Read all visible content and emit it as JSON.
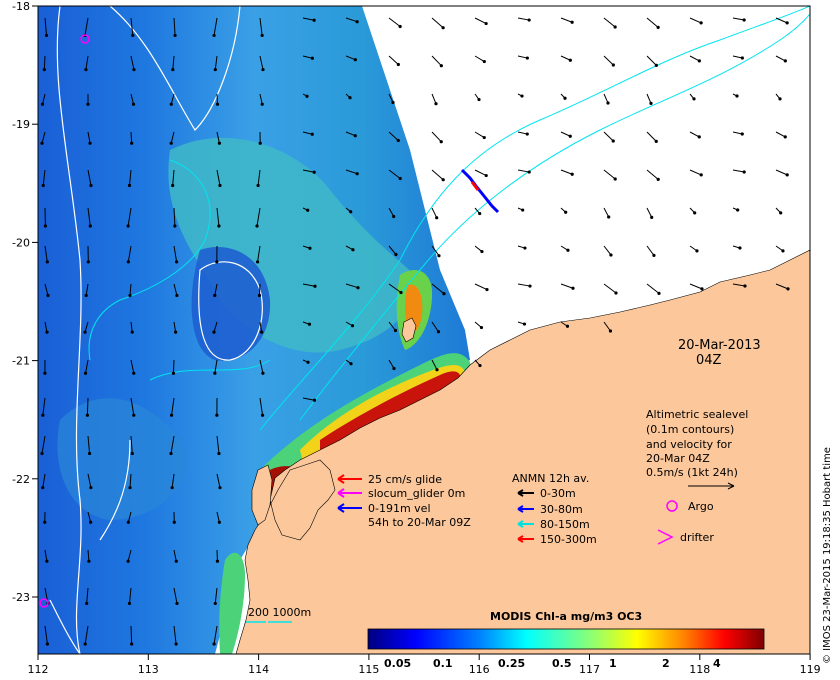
{
  "map": {
    "lon_ticks": [
      "112",
      "113",
      "114",
      "115",
      "116",
      "117",
      "118",
      "119"
    ],
    "lat_ticks": [
      "-18",
      "-19",
      "-20",
      "-21",
      "-22",
      "-23"
    ],
    "date": "20-Mar-2013",
    "time": "04Z"
  },
  "legend_vel": {
    "items": [
      {
        "label": "25 cm/s glide",
        "color": "#ff0000"
      },
      {
        "label": "slocum_glider 0m",
        "color": "#ff00ff"
      },
      {
        "label": "0-191m vel",
        "color": "#0000ff"
      }
    ],
    "note": "54h to 20-Mar 09Z"
  },
  "legend_anmn": {
    "title": "ANMN 12h av.",
    "items": [
      {
        "label": "0-30m",
        "color": "#000000"
      },
      {
        "label": "30-80m",
        "color": "#0000ff"
      },
      {
        "label": "80-150m",
        "color": "#00e0e0"
      },
      {
        "label": "150-300m",
        "color": "#ff0000"
      }
    ]
  },
  "legend_alt": {
    "lines": [
      "Altimetric sealevel",
      "(0.1m contours)",
      "and velocity for",
      "20-Mar 04Z",
      "0.5m/s (1kt 24h)"
    ],
    "argo": "Argo",
    "drifter": "drifter"
  },
  "bathy": {
    "label": "200  1000m"
  },
  "colorbar": {
    "title": "MODIS Chl-a mg/m3 OC3",
    "ticks": [
      "0.05",
      "0.1",
      "0.25",
      "0.5",
      "1",
      "2",
      "4"
    ],
    "colors": [
      "#00007f",
      "#0000ff",
      "#0080ff",
      "#00ffff",
      "#80ff80",
      "#ffff00",
      "#ff8000",
      "#ff0000",
      "#7f0000"
    ]
  },
  "credit": "© IMOS 23-Mar-2015 19:18:35 Hobart time",
  "colors": {
    "land": "#fcc89b",
    "ocean_deep": "#1e64dc",
    "contour": "#ffffff",
    "isobath": "#00e5ee"
  }
}
